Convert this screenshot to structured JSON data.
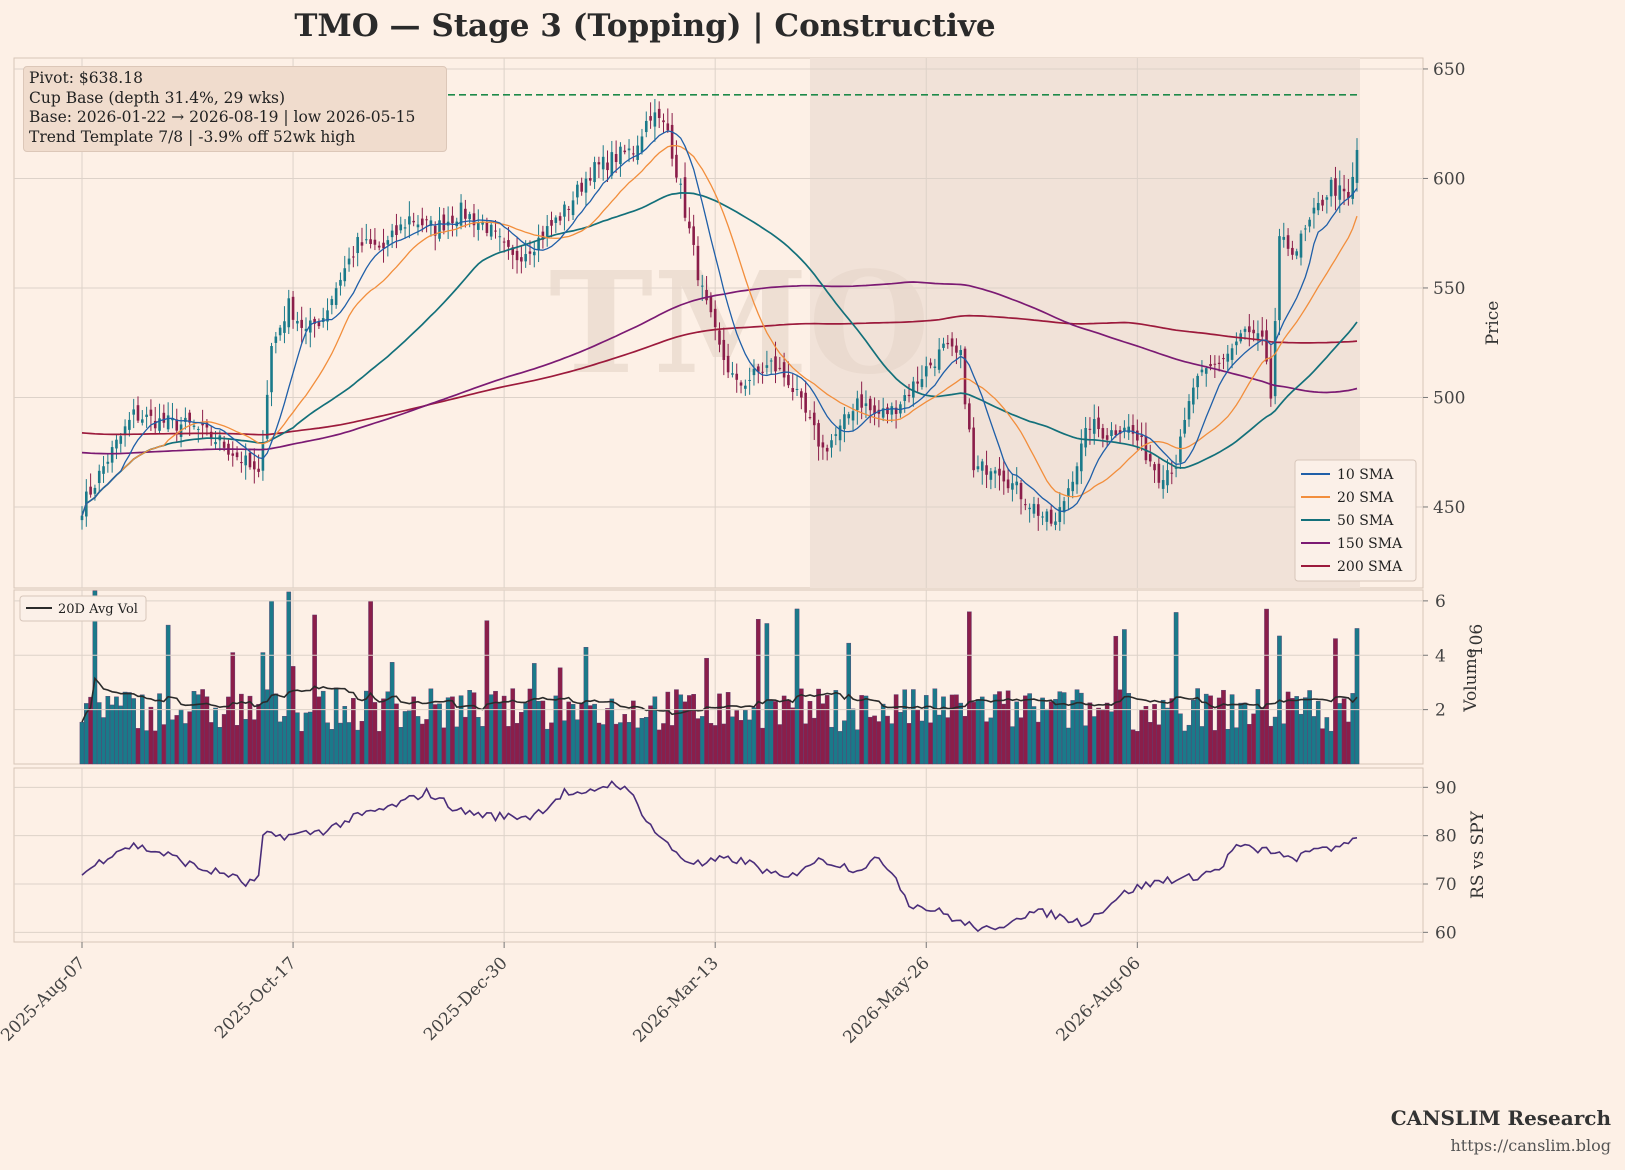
{
  "title": "TMO  —  Stage 3 (Topping)  |  Constructive",
  "info": {
    "line1": "Pivot: $638.18",
    "line2": "Cup Base  (depth 31.4%, 29 wks)",
    "line3": "Base: 2026-01-22 → 2026-08-19  |  low 2026-05-15",
    "line4": "Trend Template 7/8  |  -3.9% off 52wk high"
  },
  "brand": {
    "name": "CANSLIM Research",
    "url": "https://canslim.blog"
  },
  "watermark": "TMO",
  "colors": {
    "background": "#fdf0e6",
    "base_shade": "#f1e2d8",
    "up": "#1a7a8a",
    "down": "#8b1e4a",
    "sma10": "#1f5fa8",
    "sma20": "#f28e3c",
    "sma50": "#13707a",
    "sma150": "#7b1a73",
    "sma200": "#9c1a3c",
    "pivot": "#1e8a4a",
    "rs": "#4a2d7a",
    "avgvol": "#2b2b2b"
  },
  "chart_data": {
    "type": "candlestick",
    "ticker": "TMO",
    "x_ticks": [
      "2025-Aug-07",
      "2025-Oct-17",
      "2025-Dec-30",
      "2026-Mar-13",
      "2026-May-26",
      "2026-Aug-06"
    ],
    "price_axis": {
      "label": "Price",
      "ticks": [
        450,
        500,
        550,
        600,
        650
      ],
      "ylim": [
        413,
        655
      ]
    },
    "volume_axis": {
      "label": "Volume",
      "multiplier": "10^6",
      "ticks": [
        2,
        4,
        6
      ],
      "ylim": [
        0,
        6.4
      ]
    },
    "rs_axis": {
      "label": "RS vs SPY",
      "ticks": [
        60,
        70,
        80,
        90
      ],
      "ylim": [
        58,
        94
      ]
    },
    "pivot": 638.18,
    "base_period": [
      "2026-01-22",
      "2026-08-19"
    ],
    "legend": [
      "10 SMA",
      "20 SMA",
      "50 SMA",
      "150 SMA",
      "200 SMA"
    ],
    "volume_legend": "20D Avg Vol",
    "price_anchors": [
      [
        0,
        450
      ],
      [
        6,
        472
      ],
      [
        12,
        492
      ],
      [
        18,
        489
      ],
      [
        25,
        487
      ],
      [
        32,
        480
      ],
      [
        38,
        470
      ],
      [
        41,
        463
      ],
      [
        44,
        523
      ],
      [
        48,
        542
      ],
      [
        52,
        530
      ],
      [
        56,
        537
      ],
      [
        60,
        555
      ],
      [
        64,
        570
      ],
      [
        70,
        568
      ],
      [
        76,
        582
      ],
      [
        82,
        577
      ],
      [
        88,
        585
      ],
      [
        94,
        578
      ],
      [
        100,
        563
      ],
      [
        106,
        572
      ],
      [
        112,
        585
      ],
      [
        118,
        603
      ],
      [
        124,
        610
      ],
      [
        128,
        613
      ],
      [
        132,
        630
      ],
      [
        136,
        622
      ],
      [
        140,
        585
      ],
      [
        144,
        548
      ],
      [
        148,
        522
      ],
      [
        152,
        505
      ],
      [
        156,
        510
      ],
      [
        160,
        515
      ],
      [
        164,
        508
      ],
      [
        168,
        492
      ],
      [
        172,
        476
      ],
      [
        176,
        485
      ],
      [
        180,
        500
      ],
      [
        184,
        492
      ],
      [
        188,
        494
      ],
      [
        192,
        503
      ],
      [
        196,
        513
      ],
      [
        200,
        522
      ],
      [
        204,
        518
      ],
      [
        207,
        466
      ],
      [
        212,
        470
      ],
      [
        216,
        460
      ],
      [
        220,
        452
      ],
      [
        224,
        444
      ],
      [
        226,
        442
      ],
      [
        230,
        465
      ],
      [
        234,
        488
      ],
      [
        238,
        483
      ],
      [
        242,
        488
      ],
      [
        246,
        478
      ],
      [
        250,
        465
      ],
      [
        254,
        470
      ],
      [
        258,
        505
      ],
      [
        262,
        513
      ],
      [
        266,
        520
      ],
      [
        270,
        530
      ],
      [
        274,
        525
      ],
      [
        276,
        500
      ],
      [
        278,
        570
      ],
      [
        282,
        568
      ],
      [
        286,
        583
      ],
      [
        290,
        597
      ],
      [
        294,
        590
      ],
      [
        296,
        608
      ]
    ],
    "rs_anchors": [
      [
        0,
        72
      ],
      [
        8,
        77
      ],
      [
        12,
        78
      ],
      [
        20,
        76
      ],
      [
        28,
        73
      ],
      [
        34,
        72
      ],
      [
        38,
        70
      ],
      [
        41,
        71
      ],
      [
        42,
        80
      ],
      [
        48,
        80
      ],
      [
        56,
        81
      ],
      [
        64,
        84
      ],
      [
        72,
        86
      ],
      [
        80,
        89
      ],
      [
        88,
        85
      ],
      [
        96,
        84
      ],
      [
        104,
        84
      ],
      [
        108,
        86
      ],
      [
        112,
        89
      ],
      [
        116,
        88
      ],
      [
        120,
        90
      ],
      [
        124,
        91
      ],
      [
        128,
        88
      ],
      [
        132,
        82
      ],
      [
        136,
        78
      ],
      [
        140,
        75
      ],
      [
        144,
        74
      ],
      [
        148,
        75
      ],
      [
        152,
        75
      ],
      [
        156,
        74
      ],
      [
        160,
        72
      ],
      [
        164,
        71
      ],
      [
        168,
        74
      ],
      [
        172,
        75
      ],
      [
        176,
        74
      ],
      [
        180,
        73
      ],
      [
        184,
        75
      ],
      [
        188,
        73
      ],
      [
        192,
        66
      ],
      [
        196,
        65
      ],
      [
        200,
        64
      ],
      [
        204,
        62
      ],
      [
        208,
        61
      ],
      [
        212,
        60
      ],
      [
        216,
        63
      ],
      [
        220,
        64
      ],
      [
        224,
        64
      ],
      [
        228,
        63
      ],
      [
        232,
        62
      ],
      [
        236,
        64
      ],
      [
        240,
        67
      ],
      [
        244,
        69
      ],
      [
        248,
        70
      ],
      [
        252,
        71
      ],
      [
        256,
        71
      ],
      [
        260,
        72
      ],
      [
        264,
        73
      ],
      [
        268,
        78
      ],
      [
        272,
        77
      ],
      [
        276,
        77
      ],
      [
        280,
        75
      ],
      [
        284,
        76
      ],
      [
        288,
        78
      ],
      [
        292,
        77
      ],
      [
        296,
        80
      ]
    ]
  }
}
